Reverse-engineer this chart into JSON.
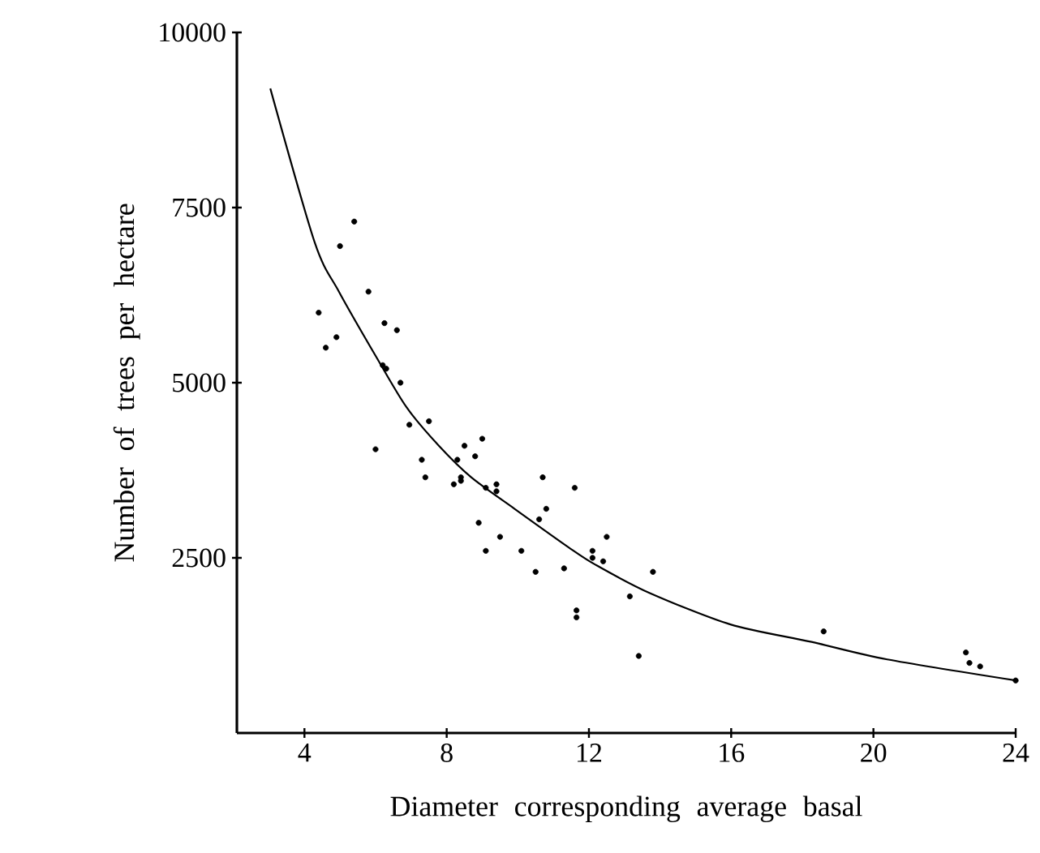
{
  "chart_data": {
    "type": "scatter",
    "xlabel": "Diameter corresponding average basal",
    "ylabel": "Number of trees per hectare",
    "xlim": [
      2.1,
      24
    ],
    "ylim": [
      0,
      10000
    ],
    "xticks": [
      4,
      8,
      12,
      16,
      20,
      24
    ],
    "yticks": [
      2500,
      5000,
      7500,
      10000
    ],
    "grid": false,
    "series": [
      {
        "color": "#000000",
        "marker": "circle",
        "x": [
          5.4,
          5.0,
          5.8,
          4.4,
          6.25,
          6.6,
          4.9,
          4.6,
          6.2,
          6.3,
          6.7,
          7.5,
          6.95,
          6.0,
          7.3,
          7.4,
          8.5,
          9.0,
          8.3,
          8.8,
          8.4,
          8.4,
          8.2,
          9.1,
          9.4,
          9.4,
          10.7,
          11.6,
          10.8,
          10.6,
          8.9,
          9.5,
          10.1,
          9.1,
          12.5,
          12.1,
          12.4,
          12.1,
          11.3,
          10.5,
          11.65,
          11.65,
          13.15,
          13.8,
          13.4,
          18.6,
          22.6,
          22.7,
          23.0,
          24.0
        ],
        "values": [
          7300,
          6950,
          6300,
          6000,
          5850,
          5750,
          5650,
          5500,
          5250,
          5200,
          5000,
          4450,
          4400,
          4050,
          3900,
          3650,
          4100,
          4200,
          3900,
          3950,
          3650,
          3600,
          3550,
          3500,
          3550,
          3450,
          3650,
          3500,
          3200,
          3050,
          3000,
          2800,
          2600,
          2600,
          2800,
          2600,
          2450,
          2500,
          2350,
          2300,
          1750,
          1650,
          1950,
          2300,
          1100,
          1450,
          1150,
          1000,
          950,
          750
        ]
      },
      {
        "type": "line",
        "color": "#000000",
        "marker": "none",
        "line_style": "solid",
        "x": [
          3.04,
          4.29,
          4.97,
          6.04,
          6.87,
          7.78,
          8.69,
          9.91,
          11.43,
          12.19,
          13.7,
          15.98,
          18.26,
          20.39,
          24
        ],
        "values": [
          9200,
          7000,
          6300,
          5350,
          4650,
          4100,
          3650,
          3200,
          2650,
          2400,
          2000,
          1550,
          1300,
          1050,
          750
        ]
      }
    ]
  }
}
